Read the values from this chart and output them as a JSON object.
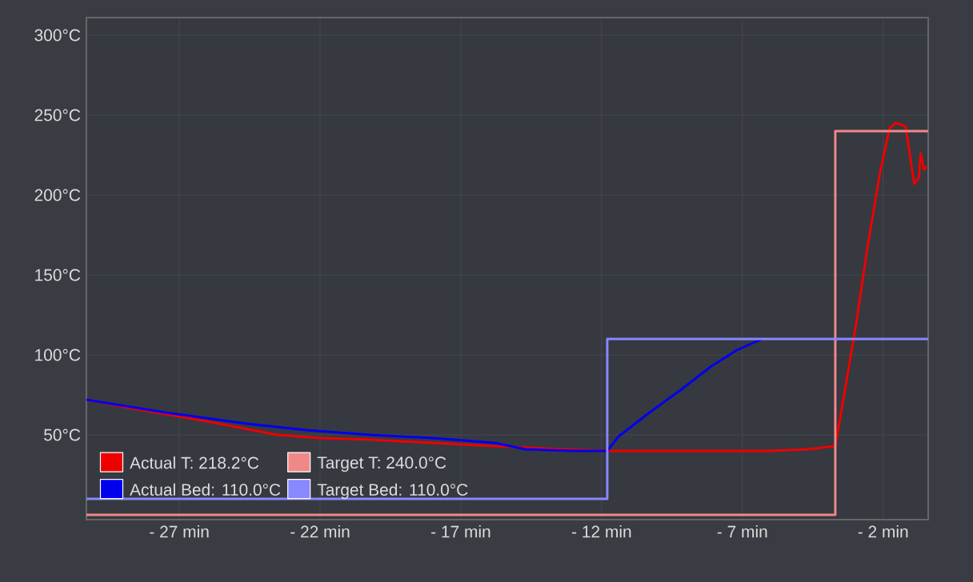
{
  "chart_data": {
    "type": "line",
    "xlim": [
      -30.3,
      -0.4
    ],
    "ylim": [
      -3,
      311
    ],
    "xticks": [
      {
        "value": -27,
        "label": "- 27 min"
      },
      {
        "value": -22,
        "label": "- 22 min"
      },
      {
        "value": -17,
        "label": "- 17 min"
      },
      {
        "value": -12,
        "label": "- 12 min"
      },
      {
        "value": -7,
        "label": "- 7 min"
      },
      {
        "value": -2,
        "label": "- 2 min"
      }
    ],
    "yticks": [
      {
        "value": 50,
        "label": "50°C"
      },
      {
        "value": 100,
        "label": "100°C"
      },
      {
        "value": 150,
        "label": "150°C"
      },
      {
        "value": 200,
        "label": "200°C"
      },
      {
        "value": 250,
        "label": "250°C"
      },
      {
        "value": 300,
        "label": "300°C"
      }
    ],
    "grid": true,
    "legend": "bottom left",
    "marker": "none",
    "line_style": "solid",
    "series": [
      {
        "name": "Actual T: 218.2°C",
        "color": "#ee0000",
        "x": [
          -30.3,
          -28.5,
          -26.8,
          -25,
          -23.5,
          -22,
          -20.2,
          -18,
          -15.8,
          -13.5,
          -11.8,
          -9,
          -6,
          -4.7,
          -3.7,
          -3.0,
          -2.55,
          -2.1,
          -1.77,
          -1.55,
          -1.2,
          -1.06,
          -0.89,
          -0.73,
          -0.67,
          -0.55,
          -0.44
        ],
        "values": [
          72,
          66,
          61,
          55,
          50,
          48,
          47,
          45,
          43,
          41,
          40,
          40,
          40,
          41,
          43,
          115,
          168,
          215,
          242,
          245,
          243,
          226,
          207,
          211,
          226,
          216,
          218
        ]
      },
      {
        "name": "Target T: 240.0°C",
        "color": "#f08888",
        "type": "step",
        "x": [
          -30.3,
          -3.7,
          -0.4
        ],
        "values": [
          0,
          240,
          240
        ]
      },
      {
        "name": "Actual Bed: 110.0°C",
        "color": "#0000ee",
        "x": [
          -30.3,
          -27.5,
          -24.6,
          -22.5,
          -20.2,
          -18,
          -15.8,
          -14.7,
          -13,
          -11.8,
          -11.4,
          -10.3,
          -9.2,
          -8.1,
          -7.2,
          -6.3
        ],
        "values": [
          72,
          64,
          57,
          53,
          50,
          48,
          45,
          41,
          40,
          40,
          49,
          64,
          78,
          93,
          103,
          110
        ]
      },
      {
        "name": "Target Bed: 110.0°C",
        "color": "#8888ff",
        "type": "step",
        "x": [
          -30.3,
          -11.8,
          -0.4
        ],
        "values": [
          10,
          110,
          110
        ]
      }
    ]
  }
}
